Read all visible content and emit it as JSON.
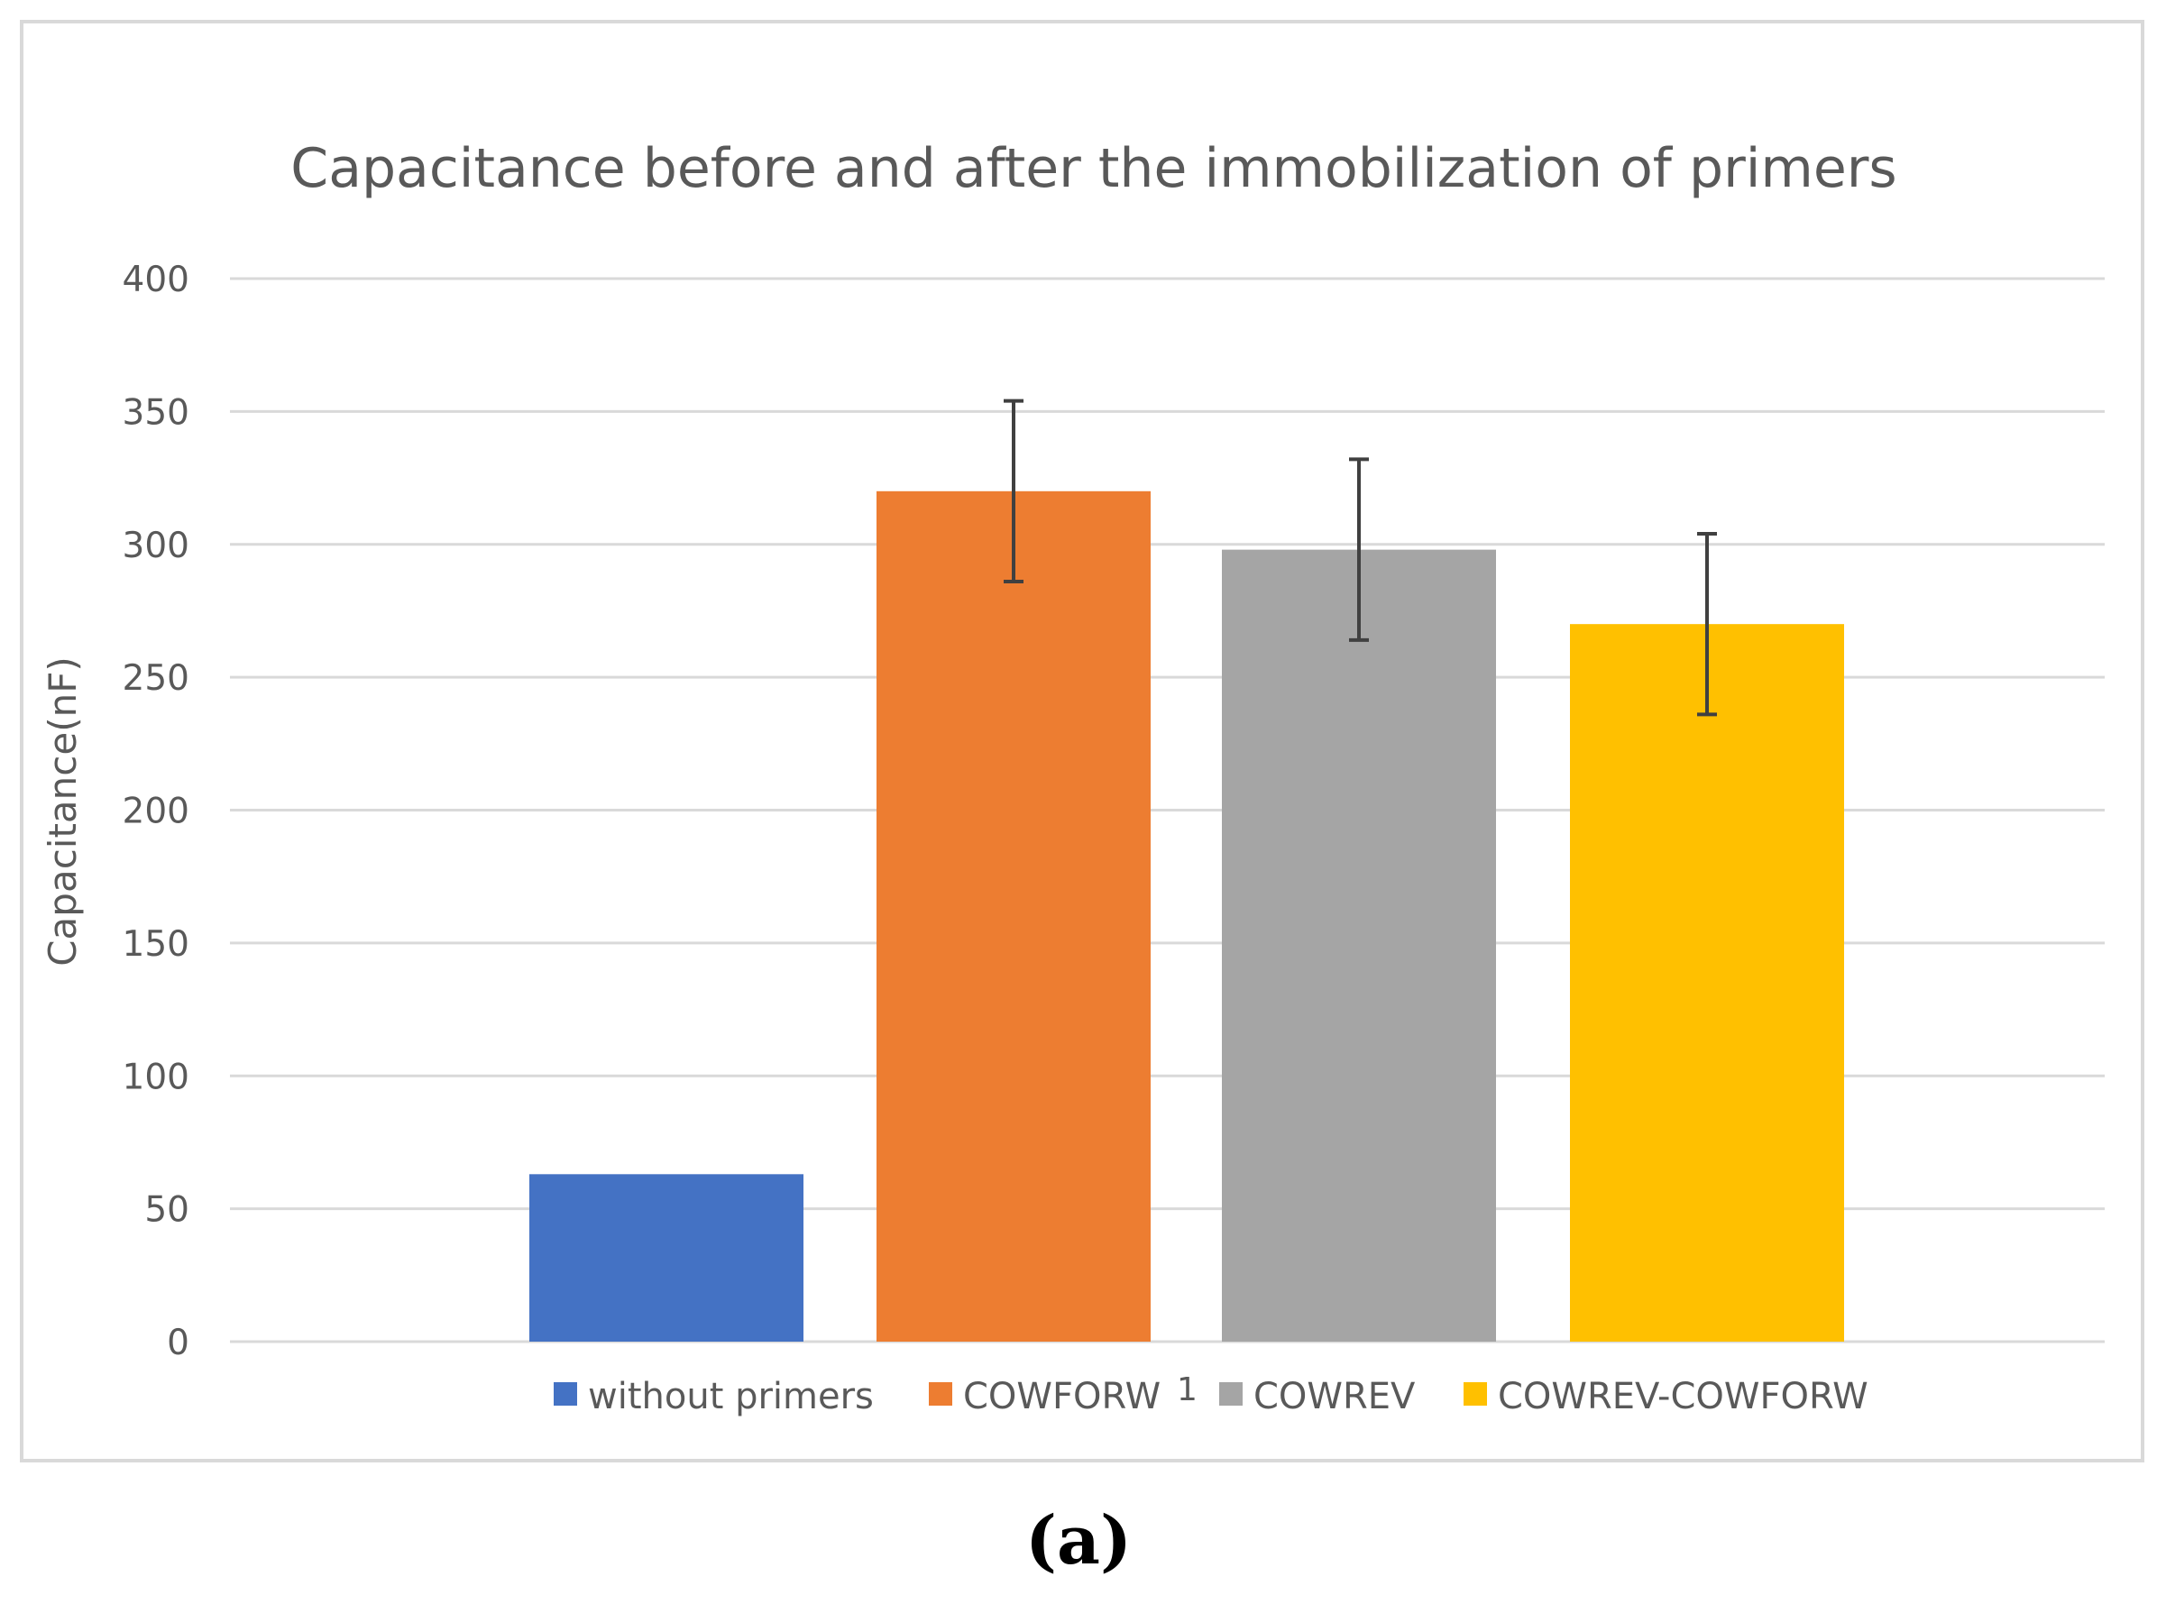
{
  "chart_data": {
    "type": "bar",
    "title": "Capacitance before and after the immobilization of primers",
    "xlabel": "",
    "ylabel": "Capacitance(nF)",
    "ylim": [
      0,
      400
    ],
    "yticks": [
      0,
      50,
      100,
      150,
      200,
      250,
      300,
      350,
      400
    ],
    "grid": true,
    "legend_position": "bottom",
    "series": [
      {
        "name": "without primers",
        "value": 63,
        "error": null,
        "color": "#4472C4"
      },
      {
        "name": "COWFORW",
        "value": 320,
        "error": 34,
        "color": "#ED7D31"
      },
      {
        "name": "COWREV",
        "value": 298,
        "error": 34,
        "color": "#A5A5A5"
      },
      {
        "name": "COWREV-COWFORW",
        "value": 270,
        "error": 34,
        "color": "#FFC000"
      }
    ],
    "annotation": "1"
  },
  "panel_label": "(a)"
}
